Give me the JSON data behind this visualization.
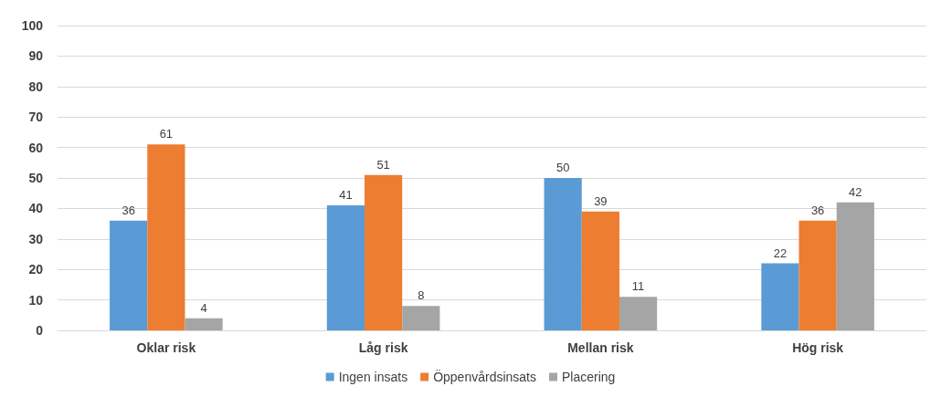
{
  "chart_data": {
    "type": "bar",
    "categories": [
      "Oklar risk",
      "Låg risk",
      "Mellan risk",
      "Hög risk"
    ],
    "series": [
      {
        "name": "Ingen insats",
        "color": "#5b9bd5",
        "values": [
          36,
          41,
          50,
          22
        ]
      },
      {
        "name": "Öppenvårdsinsats",
        "color": "#ed7d31",
        "values": [
          61,
          51,
          39,
          36
        ]
      },
      {
        "name": "Placering",
        "color": "#a5a5a5",
        "values": [
          4,
          8,
          11,
          42
        ]
      }
    ],
    "ylim": [
      0,
      100
    ],
    "yticks": [
      0,
      10,
      20,
      30,
      40,
      50,
      60,
      70,
      80,
      90,
      100
    ],
    "grid": "y",
    "legend": "bottom",
    "data_labels": true
  }
}
